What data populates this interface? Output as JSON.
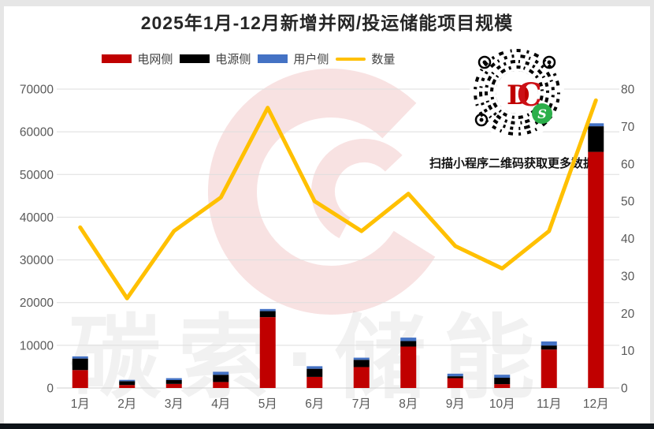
{
  "page": {
    "annotation": "扫描小程序二维码获取更多数据",
    "watermark_text": "碳索·储能",
    "qr_center_logo": "DC",
    "qr_miniprogram_icon_glyph": "S"
  },
  "colors": {
    "grid_side": "#C00000",
    "source_side": "#000000",
    "user_side": "#4472C4",
    "quantity_line": "#FFC000",
    "gridline": "#DEDEDE",
    "axis_text": "#595959",
    "title_text": "#262626",
    "qr_logo_red": "#C00000",
    "miniprogram_green": "#2BAF4A"
  },
  "chart_data": {
    "type": "bar+line",
    "title": "2025年1月-12月新增并网/投运储能项目规模",
    "categories": [
      "1月",
      "2月",
      "3月",
      "4月",
      "5月",
      "6月",
      "7月",
      "8月",
      "9月",
      "10月",
      "11月",
      "12月"
    ],
    "series": [
      {
        "name": "电网侧",
        "type": "bar",
        "stack": true,
        "color": "#C00000",
        "axis": "left",
        "values": [
          4200,
          700,
          950,
          1400,
          16600,
          2600,
          4900,
          9700,
          2300,
          900,
          9000,
          55300
        ]
      },
      {
        "name": "电源侧",
        "type": "bar",
        "stack": true,
        "color": "#000000",
        "axis": "left",
        "values": [
          2700,
          900,
          900,
          1700,
          1400,
          1900,
          1700,
          1300,
          450,
          1500,
          950,
          6000
        ]
      },
      {
        "name": "用户侧",
        "type": "bar",
        "stack": true,
        "color": "#4472C4",
        "axis": "left",
        "values": [
          500,
          300,
          450,
          700,
          500,
          600,
          500,
          800,
          600,
          700,
          950,
          700
        ]
      },
      {
        "name": "数量",
        "type": "line",
        "color": "#FFC000",
        "axis": "right",
        "values": [
          43,
          24,
          42,
          51,
          75,
          50,
          42,
          52,
          38,
          32,
          42,
          77
        ]
      }
    ],
    "left_axis": {
      "min": 0,
      "max": 70000,
      "step": 10000,
      "ticks": [
        "0",
        "10000",
        "20000",
        "30000",
        "40000",
        "50000",
        "60000",
        "70000"
      ]
    },
    "right_axis": {
      "min": 0,
      "max": 80,
      "step": 10,
      "ticks": [
        "0",
        "10",
        "20",
        "30",
        "40",
        "50",
        "60",
        "70",
        "80"
      ]
    },
    "grid": true,
    "legend_position": "top"
  }
}
